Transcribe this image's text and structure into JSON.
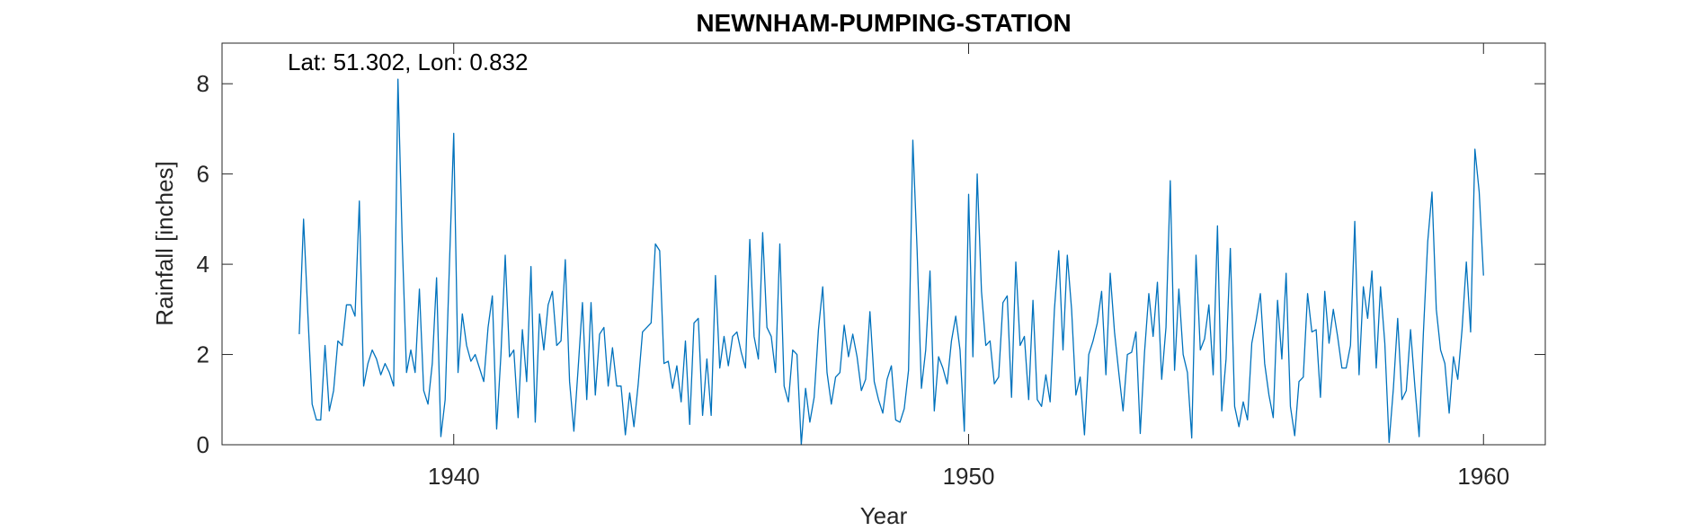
{
  "chart_data": {
    "type": "line",
    "title": "NEWNHAM-PUMPING-STATION",
    "annotation": "Lat: 51.302, Lon: 0.832",
    "xlabel": "Year",
    "ylabel": "Rainfall [inches]",
    "xlim": [
      1935.5,
      1961.2
    ],
    "ylim": [
      0,
      8.9
    ],
    "xticks": [
      1940,
      1950,
      1960
    ],
    "yticks": [
      0,
      2,
      4,
      6,
      8
    ],
    "grid": false,
    "series_color": "#0072bd",
    "series": [
      {
        "x_start": 1937.0,
        "x_step": 0.0833333,
        "values": [
          2.45,
          5.0,
          2.9,
          0.9,
          0.55,
          0.55,
          2.2,
          0.75,
          1.2,
          2.3,
          2.2,
          3.1,
          3.1,
          2.85,
          5.4,
          1.3,
          1.8,
          2.1,
          1.9,
          1.55,
          1.8,
          1.6,
          1.3,
          8.1,
          4.5,
          1.6,
          2.1,
          1.6,
          3.45,
          1.2,
          0.9,
          1.8,
          3.7,
          0.18,
          1.0,
          4.0,
          6.9,
          1.6,
          2.9,
          2.2,
          1.85,
          2.0,
          1.7,
          1.4,
          2.6,
          3.3,
          0.35,
          2.0,
          4.2,
          1.95,
          2.1,
          0.6,
          2.55,
          1.4,
          3.95,
          0.5,
          2.9,
          2.1,
          3.1,
          3.4,
          2.2,
          2.3,
          4.1,
          1.4,
          0.3,
          1.7,
          3.15,
          1.0,
          3.15,
          1.1,
          2.45,
          2.6,
          1.3,
          2.15,
          1.3,
          1.3,
          0.22,
          1.15,
          0.4,
          1.35,
          2.5,
          2.6,
          2.7,
          4.45,
          4.3,
          1.8,
          1.85,
          1.25,
          1.75,
          0.95,
          2.3,
          0.45,
          2.7,
          2.8,
          0.65,
          1.9,
          0.65,
          3.75,
          1.7,
          2.4,
          1.75,
          2.4,
          2.5,
          2.05,
          1.7,
          4.55,
          2.4,
          1.9,
          4.7,
          2.6,
          2.4,
          1.6,
          4.45,
          1.3,
          0.95,
          2.1,
          2.0,
          0.0,
          1.25,
          0.5,
          1.05,
          2.55,
          3.5,
          1.6,
          0.9,
          1.5,
          1.6,
          2.65,
          1.95,
          2.45,
          1.95,
          1.2,
          1.45,
          2.95,
          1.4,
          1.0,
          0.7,
          1.45,
          1.75,
          0.55,
          0.5,
          0.8,
          1.65,
          6.75,
          4.3,
          1.25,
          2.1,
          3.85,
          0.75,
          1.95,
          1.7,
          1.35,
          2.3,
          2.85,
          2.1,
          0.3,
          5.55,
          1.95,
          6.0,
          3.4,
          2.2,
          2.3,
          1.35,
          1.5,
          3.15,
          3.3,
          1.05,
          4.05,
          2.2,
          2.4,
          1.0,
          3.2,
          1.0,
          0.85,
          1.55,
          0.95,
          3.0,
          4.3,
          2.1,
          4.2,
          3.0,
          1.1,
          1.5,
          0.22,
          2.0,
          2.3,
          2.7,
          3.4,
          1.55,
          3.8,
          2.5,
          1.6,
          0.75,
          2.0,
          2.05,
          2.5,
          0.25,
          2.05,
          3.35,
          2.4,
          3.6,
          1.45,
          2.6,
          5.85,
          1.65,
          3.45,
          2.0,
          1.6,
          0.15,
          4.2,
          2.1,
          2.35,
          3.1,
          1.55,
          4.85,
          0.75,
          1.9,
          4.35,
          0.85,
          0.4,
          0.95,
          0.55,
          2.25,
          2.75,
          3.35,
          1.8,
          1.1,
          0.6,
          3.2,
          1.9,
          3.8,
          0.85,
          0.2,
          1.4,
          1.5,
          3.35,
          2.5,
          2.55,
          1.05,
          3.4,
          2.25,
          3.0,
          2.4,
          1.7,
          1.7,
          2.2,
          4.95,
          1.55,
          3.5,
          2.8,
          3.85,
          1.7,
          3.5,
          2.25,
          0.05,
          1.25,
          2.8,
          1.0,
          1.2,
          2.55,
          1.3,
          0.18,
          2.5,
          4.5,
          5.6,
          3.0,
          2.1,
          1.8,
          0.7,
          1.95,
          1.45,
          2.55,
          4.05,
          2.5,
          6.55,
          5.6,
          3.75
        ]
      }
    ]
  }
}
